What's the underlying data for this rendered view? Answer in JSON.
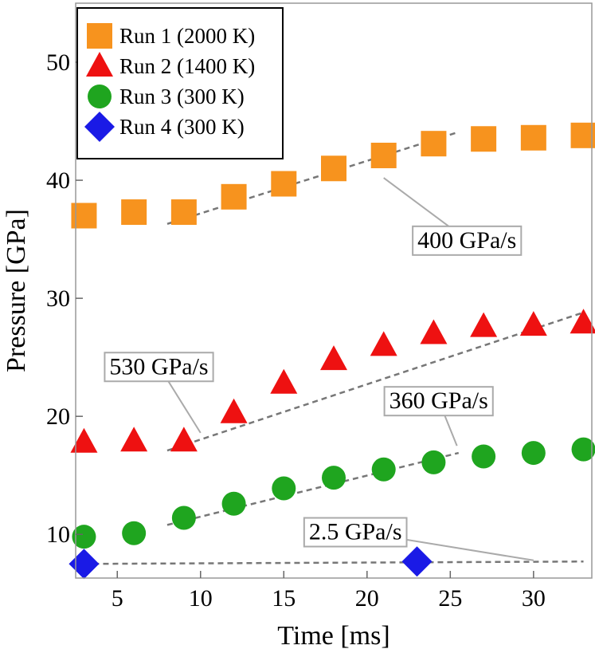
{
  "chart_data": {
    "type": "scatter",
    "xlabel": "Time [ms]",
    "ylabel": "Pressure [GPa]",
    "xlim": [
      2.5,
      33.5
    ],
    "ylim": [
      6.3,
      55
    ],
    "x_ticks": [
      5,
      10,
      15,
      20,
      25,
      30
    ],
    "y_ticks": [
      10,
      20,
      30,
      40,
      50
    ],
    "grid": false,
    "legend_position": "top-left",
    "series": [
      {
        "name": "Run 1 (2000 K)",
        "marker": "square",
        "color": "#F7931E",
        "x": [
          3,
          6,
          9,
          12,
          15,
          18,
          21,
          24,
          27,
          30,
          33
        ],
        "y": [
          37.0,
          37.3,
          37.3,
          38.6,
          39.7,
          41.0,
          42.1,
          43.1,
          43.5,
          43.6,
          43.8
        ]
      },
      {
        "name": "Run 2 (1400 K)",
        "marker": "triangle",
        "color": "#EE1111",
        "x": [
          3,
          6,
          9,
          12,
          15,
          18,
          21,
          24,
          27,
          30,
          33
        ],
        "y": [
          17.8,
          17.9,
          17.9,
          20.3,
          22.8,
          24.8,
          26.0,
          27.0,
          27.6,
          27.7,
          27.9
        ]
      },
      {
        "name": "Run 3 (300 K)",
        "marker": "circle",
        "color": "#1FA51F",
        "x": [
          3,
          6,
          9,
          12,
          15,
          18,
          21,
          24,
          27,
          30,
          33
        ],
        "y": [
          9.8,
          10.1,
          11.4,
          12.6,
          13.9,
          14.8,
          15.5,
          16.1,
          16.6,
          16.9,
          17.2
        ]
      },
      {
        "name": "Run 4 (300 K)",
        "marker": "diamond",
        "color": "#1A1AE6",
        "x": [
          3,
          23
        ],
        "y": [
          7.5,
          7.7
        ]
      }
    ],
    "fit_lines": [
      {
        "x": [
          8,
          25.3
        ],
        "y": [
          36.3,
          44.0
        ]
      },
      {
        "x": [
          8,
          33
        ],
        "y": [
          17.1,
          28.8
        ]
      },
      {
        "x": [
          8,
          25.5
        ],
        "y": [
          10.8,
          16.9
        ]
      },
      {
        "x": [
          3,
          33
        ],
        "y": [
          7.5,
          7.7
        ]
      }
    ],
    "annotations": [
      {
        "text": "400 GPa/s",
        "label_x": 26,
        "label_y": 34.95,
        "target_x": 21.0,
        "target_y": 40.2
      },
      {
        "text": "530 GPa/s",
        "label_x": 7.5,
        "label_y": 24.25,
        "target_x": 10.0,
        "target_y": 18.6
      },
      {
        "text": "360 GPa/s",
        "label_x": 24.3,
        "label_y": 21.35,
        "target_x": 25.4,
        "target_y": 17.5
      },
      {
        "text": "2.5 GPa/s",
        "label_x": 19.3,
        "label_y": 10.25,
        "target_x": 30.0,
        "target_y": 7.8
      }
    ]
  }
}
